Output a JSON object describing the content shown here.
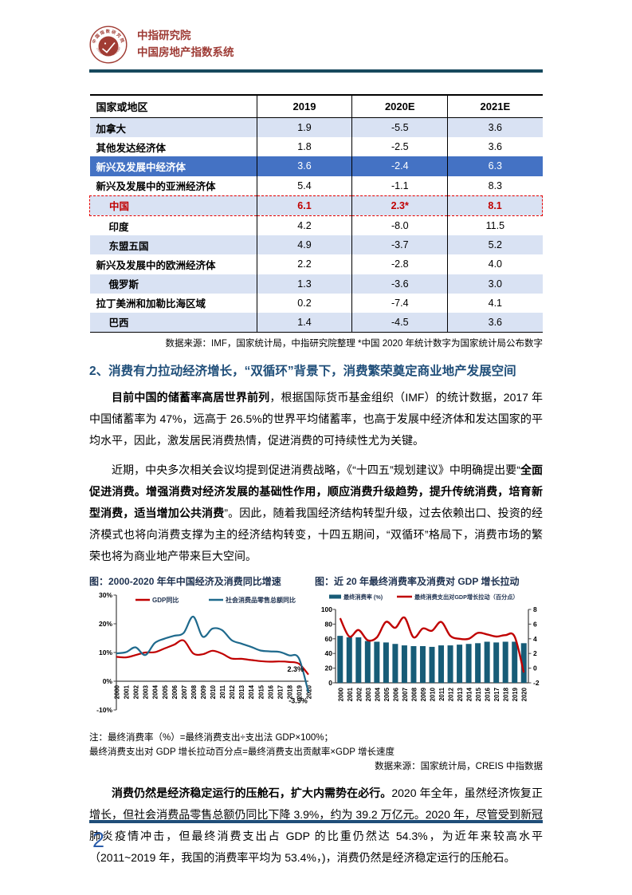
{
  "header": {
    "org_name": "中指研究院",
    "system_name": "中国房地产指数系统",
    "logo_ring_text_top": "中国指数研究院",
    "logo_ring_text_bottom": "CHINA INDEX ACADEMY",
    "brand_color": "#9E3B35",
    "rule_color": "#17495D"
  },
  "table": {
    "columns": [
      "国家或地区",
      "2019",
      "2020E",
      "2021E"
    ],
    "rows": [
      {
        "name": "加拿大",
        "values": [
          "1.9",
          "-5.5",
          "3.6"
        ],
        "style": "lb",
        "indent": false
      },
      {
        "name": "其他发达经济体",
        "values": [
          "1.8",
          "-2.5",
          "3.6"
        ],
        "style": "wh",
        "indent": false
      },
      {
        "name": "新兴及发展中经济体",
        "values": [
          "3.6",
          "-2.4",
          "6.3"
        ],
        "style": "db",
        "indent": false
      },
      {
        "name": "新兴及发展中的亚洲经济体",
        "values": [
          "5.4",
          "-1.1",
          "8.3"
        ],
        "style": "wh",
        "indent": false
      },
      {
        "name": "中国",
        "values": [
          "6.1",
          "2.3*",
          "8.1"
        ],
        "style": "cn",
        "indent": true
      },
      {
        "name": "印度",
        "values": [
          "4.2",
          "-8.0",
          "11.5"
        ],
        "style": "wh",
        "indent": true
      },
      {
        "name": "东盟五国",
        "values": [
          "4.9",
          "-3.7",
          "5.2"
        ],
        "style": "lb",
        "indent": true
      },
      {
        "name": "新兴及发展中的欧洲经济体",
        "values": [
          "2.2",
          "-2.8",
          "4.0"
        ],
        "style": "wh",
        "indent": false
      },
      {
        "name": "俄罗斯",
        "values": [
          "1.3",
          "-3.6",
          "3.0"
        ],
        "style": "lb",
        "indent": true
      },
      {
        "name": "拉丁美洲和加勒比海区域",
        "values": [
          "0.2",
          "-7.4",
          "4.1"
        ],
        "style": "wh",
        "indent": false
      },
      {
        "name": "巴西",
        "values": [
          "1.4",
          "-4.5",
          "3.6"
        ],
        "style": "lb",
        "indent": true
      }
    ],
    "source_note": "数据来源：IMF，国家统计局，中指研究院整理 *中国 2020 年统计数字为国家统计局公布数字",
    "colors": {
      "lightblue": "#D9E2F3",
      "darkblue": "#4472C4",
      "china_text": "#C00000",
      "china_border": "#E60000"
    }
  },
  "section": {
    "heading": "2、消费有力拉动经济增长，“双循环”背景下，消费繁荣奠定商业地产发展空间"
  },
  "paragraphs": {
    "p1_bold": "目前中国的储蓄率高居世界前列",
    "p1_rest": "，根据国际货币基金组织（IMF）的统计数据，2017 年中国储蓄率为 47%，远高于 26.5%的世界平均储蓄率，也高于发展中经济体和发达国家的平均水平，因此，激发居民消费热情，促进消费的可持续性尤为关键。",
    "p2_start": "近期，中央多次相关会议均提到促进消费战略，《“十四五”规划建议》中明确提出要“",
    "p2_bold": "全面促进消费。增强消费对经济发展的基础性作用，顺应消费升级趋势，提升传统消费，培育新型消费，适当增加公共消费",
    "p2_rest": "”。因此，随着我国经济结构转型升级，过去依赖出口、投资的经济模式也将向消费支撑为主的经济结构转变，十四五期间，“双循环”格局下，消费市场的繁荣也将为商业地产带来巨大空间。",
    "p3_bold": "消费仍然是经济稳定运行的压舱石，扩大内需势在必行。",
    "p3_rest": "2020 年全年，虽然经济恢复正增长，但社会消费品零售总额仍同比下降 3.9%，约为 39.2 万亿元。2020 年，尽管受到新冠肺炎疫情冲击，但最终消费支出占 GDP 的比重仍然达 54.3%，为近年来较高水平（2011~2019 年，我国的消费率平均为 53.4%，)，消费仍然是经济稳定运行的压舱石。"
  },
  "figures": {
    "left_title": "图：2000-2020 年年中国经济及消费同比增速",
    "right_title": "图：近 20 年最终消费率及消费对 GDP 增长拉动",
    "note_line1": "注：最终消费率（%）=最终消费支出÷支出法 GDP×100%；",
    "note_line2": "最终消费支出对 GDP 增长拉动百分点=最终消费支出贡献率×GDP 增长速度",
    "source": "数据来源：国家统计局，CREIS 中指数据"
  },
  "chart_data": [
    {
      "type": "line",
      "title": "图：2000-2020 年年中国经济及消费同比增速",
      "x": [
        "2000",
        "2001",
        "2002",
        "2003",
        "2004",
        "2005",
        "2006",
        "2007",
        "2008",
        "2009",
        "2010",
        "2011",
        "2012",
        "2013",
        "2014",
        "2015",
        "2016",
        "2017",
        "2018",
        "2019",
        "2020"
      ],
      "series": [
        {
          "name": "GDP同比",
          "color": "#C00000",
          "values": [
            8.5,
            8.3,
            9.1,
            10.0,
            10.1,
            11.4,
            12.7,
            14.2,
            9.7,
            9.4,
            10.6,
            9.6,
            7.9,
            7.8,
            7.4,
            7.0,
            6.8,
            6.9,
            6.7,
            6.1,
            2.3
          ]
        },
        {
          "name": "社会消费品零售总额同比",
          "color": "#1F6A8D",
          "values": [
            9.7,
            10.1,
            11.8,
            9.1,
            13.3,
            14.8,
            15.8,
            16.8,
            22.5,
            15.5,
            18.3,
            17.8,
            14.3,
            13.1,
            12.0,
            10.7,
            10.4,
            10.2,
            9.0,
            8.0,
            -3.9
          ]
        }
      ],
      "ylim": [
        -10,
        30
      ],
      "yticks": [
        {
          "label": "30%",
          "v": 30
        },
        {
          "label": "20%",
          "v": 20
        },
        {
          "label": "10%",
          "v": 10
        },
        {
          "label": "0%",
          "v": 0
        },
        {
          "label": "-10%",
          "v": -10
        }
      ],
      "annotations": [
        {
          "text": "2.3%",
          "xi": 19.5,
          "v": 3.4
        },
        {
          "text": "-3.9%",
          "xi": 19.9,
          "v": -7.6
        }
      ],
      "grid": false,
      "legend_position": "top-inside"
    },
    {
      "type": "bar+line",
      "title": "图：近 20 年最终消费率及消费对 GDP 增长拉动",
      "x": [
        "2000",
        "2001",
        "2002",
        "2003",
        "2004",
        "2005",
        "2006",
        "2007",
        "2008",
        "2009",
        "2010",
        "2011",
        "2012",
        "2013",
        "2014",
        "2015",
        "2016",
        "2017",
        "2018",
        "2019",
        "2020"
      ],
      "bar_series": {
        "name": "最终消费率 (%)",
        "axis": "left",
        "color": "#175C77",
        "values": [
          64,
          62,
          62,
          57,
          56,
          55,
          53,
          51,
          50,
          50,
          49,
          51,
          51,
          52,
          53,
          54,
          56,
          55,
          56,
          56,
          54
        ]
      },
      "line_series": {
        "name": "最终消费支出对GDP增长拉动（百分点）",
        "axis": "right",
        "color": "#C00000",
        "values": [
          6.8,
          4.3,
          5.2,
          3.8,
          4.2,
          6.3,
          5.5,
          6.9,
          4.2,
          5.4,
          5.1,
          6.3,
          4.4,
          4.0,
          4.0,
          4.8,
          4.6,
          4.3,
          4.5,
          4.3,
          -0.6
        ]
      },
      "left_ylim": [
        0,
        100
      ],
      "left_yticks": [
        0,
        20,
        40,
        60,
        80,
        100
      ],
      "right_ylim": [
        -2,
        8
      ],
      "right_yticks": [
        -2,
        0,
        2,
        4,
        6,
        8
      ],
      "grid": false,
      "legend_position": "top"
    }
  ],
  "footer": {
    "page_number": "2",
    "rule_color": "#1F4E79",
    "page_number_color": "#2A5CAA"
  }
}
